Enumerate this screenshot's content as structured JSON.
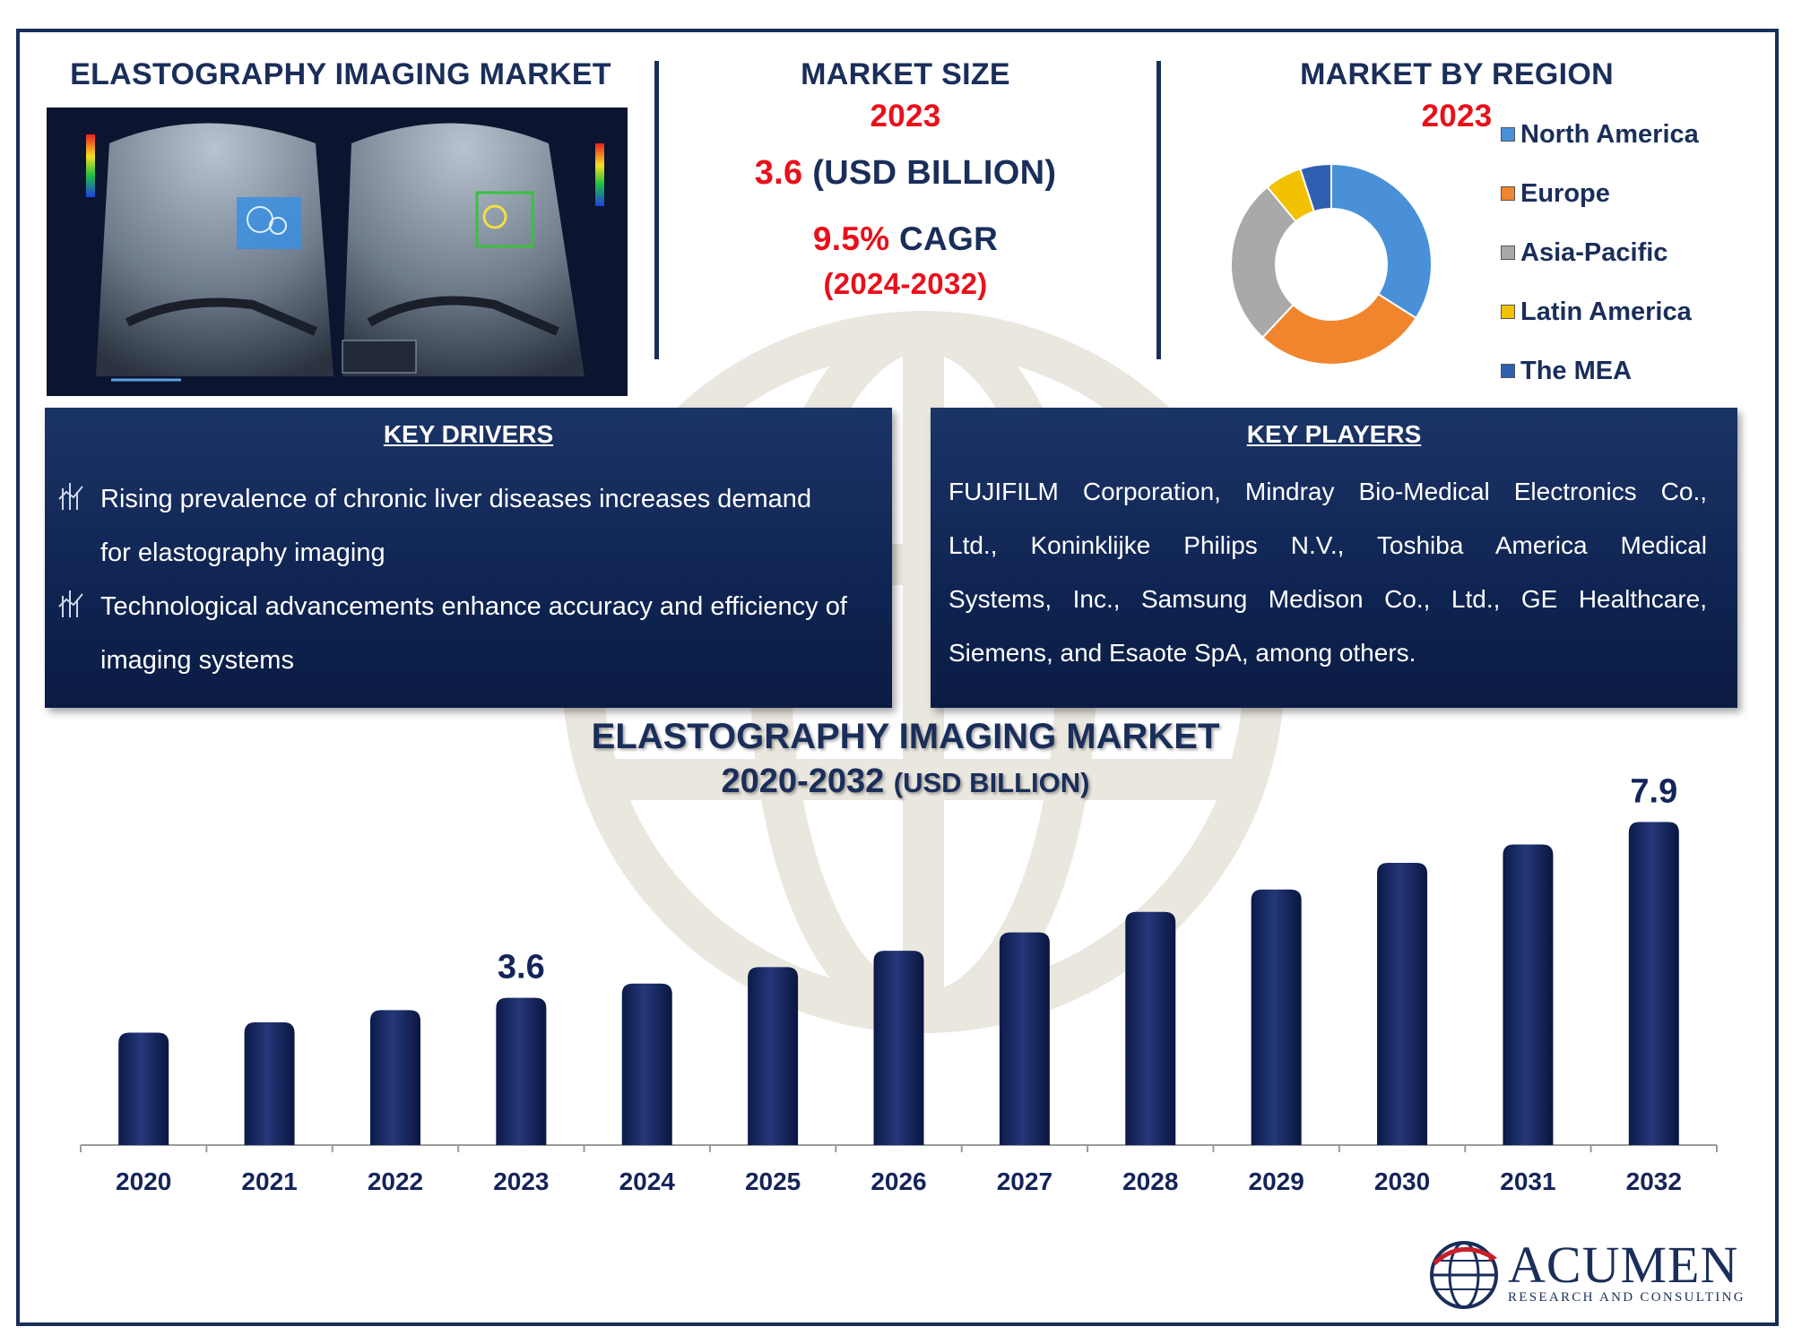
{
  "header": {
    "left_title": "ELASTOGRAPHY IMAGING MARKET",
    "market_size_title": "MARKET SIZE",
    "market_size_year": "2023",
    "market_size_value": "3.6",
    "market_size_unit": "(USD BILLION)",
    "cagr_value": "9.5%",
    "cagr_label": "CAGR",
    "cagr_period": "(2024-2032)",
    "region_title": "MARKET BY REGION",
    "region_year": "2023"
  },
  "region_legend": [
    {
      "label": "North America",
      "color": "#4a90d9"
    },
    {
      "label": "Europe",
      "color": "#f0852d"
    },
    {
      "label": "Asia-Pacific",
      "color": "#a9a9a9"
    },
    {
      "label": "Latin America",
      "color": "#f2c200"
    },
    {
      "label": "The MEA",
      "color": "#2f5fb0"
    }
  ],
  "key_drivers": {
    "title": "KEY DRIVERS",
    "items": [
      {
        "lines": [
          "Rising prevalence of chronic liver diseases increases demand",
          "for elastography imaging"
        ]
      },
      {
        "lines": [
          "Technological advancements enhance accuracy and efficiency of",
          "imaging systems"
        ]
      }
    ]
  },
  "key_players": {
    "title": "KEY PLAYERS",
    "lines": [
      "FUJIFILM Corporation, Mindray Bio-Medical Electronics Co.,",
      "Ltd., Koninklijke Philips N.V., Toshiba America Medical",
      "Systems, Inc., Samsung Medison Co., Ltd., GE Healthcare,",
      "Siemens, and Esaote SpA, among others."
    ]
  },
  "chart_title": {
    "line1": "ELASTOGRAPHY IMAGING MARKET",
    "line2": "2020-2032",
    "line2_unit": "(USD BILLION)"
  },
  "logo": {
    "name": "ACUMEN",
    "subtitle": "RESEARCH AND CONSULTING"
  },
  "chart_data": [
    {
      "type": "bar",
      "title": "ELASTOGRAPHY IMAGING MARKET 2020-2032 (USD BILLION)",
      "categories": [
        "2020",
        "2021",
        "2022",
        "2023",
        "2024",
        "2025",
        "2026",
        "2027",
        "2028",
        "2029",
        "2030",
        "2031",
        "2032"
      ],
      "values": [
        2.75,
        3.0,
        3.3,
        3.6,
        3.95,
        4.35,
        4.75,
        5.2,
        5.7,
        6.25,
        6.9,
        7.35,
        7.9
      ],
      "data_labels": {
        "3": "3.6",
        "12": "7.9"
      },
      "bar_color": "#14245a",
      "ylim": [
        0,
        8.5
      ],
      "grid": false
    },
    {
      "type": "pie",
      "title": "MARKET BY REGION 2023",
      "donut": true,
      "labels": [
        "North America",
        "Europe",
        "Asia-Pacific",
        "Latin America",
        "The MEA"
      ],
      "values": [
        34,
        28,
        27,
        6,
        5
      ],
      "colors": [
        "#4a90d9",
        "#f0852d",
        "#a9a9a9",
        "#f2c200",
        "#2f5fb0"
      ]
    }
  ]
}
